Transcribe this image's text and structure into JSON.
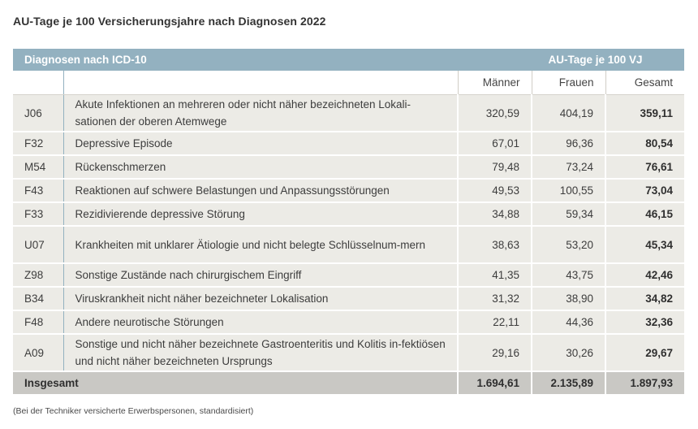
{
  "title": "AU-Tage je 100 Versicherungsjahre nach Diagnosen 2022",
  "table": {
    "header_left": "Diagnosen nach ICD-10",
    "header_right": "AU-Tage je 100 VJ",
    "columns": [
      "Männer",
      "Frauen",
      "Gesamt"
    ],
    "rows": [
      {
        "code": "J06",
        "diagnosis": "Akute Infektionen an mehreren oder nicht näher bezeichneten Lokali-sationen der oberen Atemwege",
        "m": "320,59",
        "f": "404,19",
        "total": "359,11"
      },
      {
        "code": "F32",
        "diagnosis": "Depressive Episode",
        "m": "67,01",
        "f": "96,36",
        "total": "80,54"
      },
      {
        "code": "M54",
        "diagnosis": "Rückenschmerzen",
        "m": "79,48",
        "f": "73,24",
        "total": "76,61"
      },
      {
        "code": "F43",
        "diagnosis": "Reaktionen auf schwere Belastungen und Anpassungsstörungen",
        "m": "49,53",
        "f": "100,55",
        "total": "73,04"
      },
      {
        "code": "F33",
        "diagnosis": "Rezidivierende depressive Störung",
        "m": "34,88",
        "f": "59,34",
        "total": "46,15"
      },
      {
        "code": "U07",
        "diagnosis": "Krankheiten mit unklarer Ätiologie und nicht belegte Schlüsselnum-mern",
        "m": "38,63",
        "f": "53,20",
        "total": "45,34"
      },
      {
        "code": "Z98",
        "diagnosis": "Sonstige Zustände nach chirurgischem Eingriff",
        "m": "41,35",
        "f": "43,75",
        "total": "42,46"
      },
      {
        "code": "B34",
        "diagnosis": "Viruskrankheit nicht näher bezeichneter Lokalisation",
        "m": "31,32",
        "f": "38,90",
        "total": "34,82"
      },
      {
        "code": "F48",
        "diagnosis": "Andere neurotische Störungen",
        "m": "22,11",
        "f": "44,36",
        "total": "32,36"
      },
      {
        "code": "A09",
        "diagnosis": "Sonstige und nicht näher bezeichnete Gastroenteritis und Kolitis in-fektiösen und nicht näher bezeichneten Ursprungs",
        "m": "29,16",
        "f": "30,26",
        "total": "29,67"
      }
    ],
    "total_row": {
      "label": "Insgesamt",
      "m": "1.694,61",
      "f": "2.135,89",
      "total": "1.897,93"
    }
  },
  "footnote": "(Bei der Techniker versicherte Erwerbspersonen, standardisiert)"
}
